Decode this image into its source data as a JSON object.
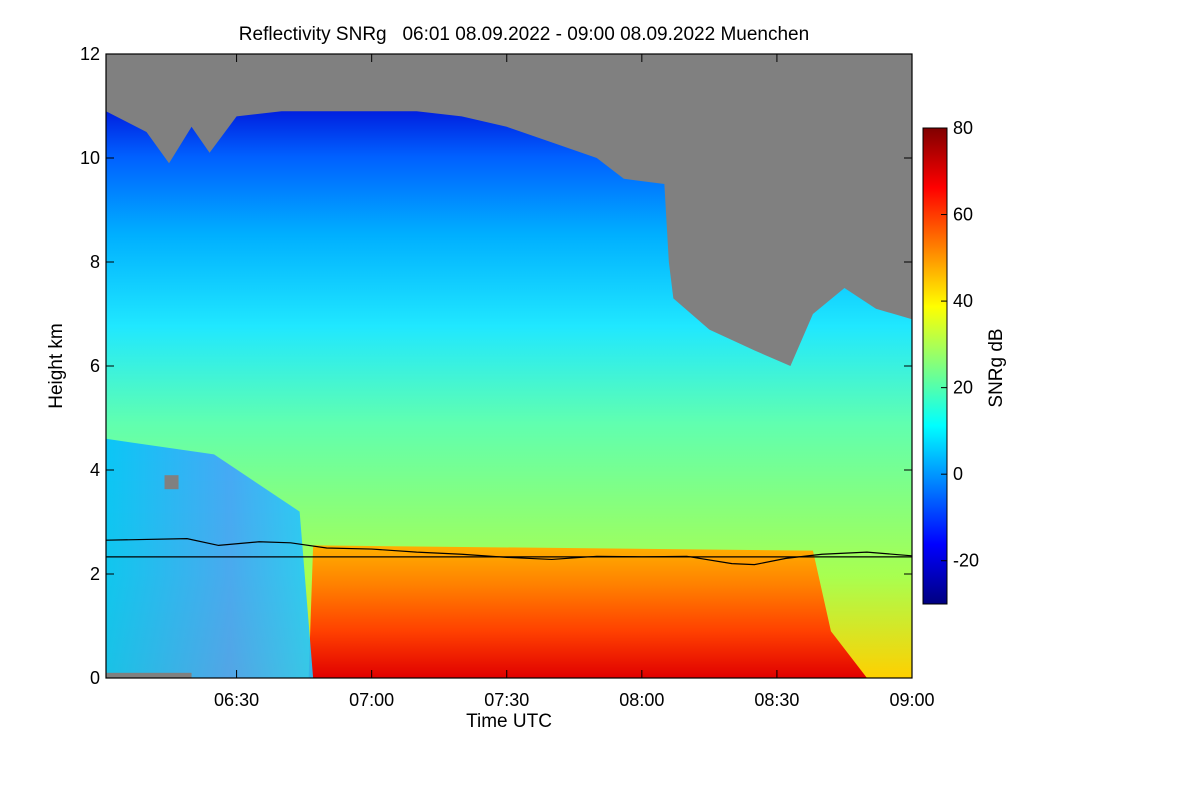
{
  "chart_data": {
    "type": "heatmap",
    "title": "Reflectivity SNRg   06:01 08.09.2022 - 09:00 08.09.2022 Muenchen",
    "xlabel": "Time UTC",
    "ylabel": "Height km",
    "colorbar_label": "SNRg dB",
    "xlim": [
      "06:01",
      "09:00"
    ],
    "ylim": [
      0,
      12
    ],
    "x_ticks": [
      "06:30",
      "07:00",
      "07:30",
      "08:00",
      "08:30",
      "09:00"
    ],
    "y_ticks": [
      0,
      2,
      4,
      6,
      8,
      10,
      12
    ],
    "colorbar_range": [
      -30,
      80
    ],
    "colorbar_ticks": [
      -20,
      0,
      20,
      40,
      60,
      80
    ],
    "colormap": "jet",
    "no_signal_color": "#808080",
    "cloud_top_km": [
      {
        "t": "06:01",
        "h": 10.9
      },
      {
        "t": "06:10",
        "h": 10.5
      },
      {
        "t": "06:15",
        "h": 9.9
      },
      {
        "t": "06:20",
        "h": 10.6
      },
      {
        "t": "06:24",
        "h": 10.1
      },
      {
        "t": "06:30",
        "h": 10.8
      },
      {
        "t": "06:40",
        "h": 10.9
      },
      {
        "t": "06:50",
        "h": 10.9
      },
      {
        "t": "07:00",
        "h": 10.9
      },
      {
        "t": "07:10",
        "h": 10.9
      },
      {
        "t": "07:20",
        "h": 10.8
      },
      {
        "t": "07:30",
        "h": 10.6
      },
      {
        "t": "07:40",
        "h": 10.3
      },
      {
        "t": "07:50",
        "h": 10.0
      },
      {
        "t": "07:56",
        "h": 9.6
      },
      {
        "t": "08:05",
        "h": 9.5
      },
      {
        "t": "08:06",
        "h": 8.0
      },
      {
        "t": "08:07",
        "h": 7.3
      },
      {
        "t": "08:15",
        "h": 6.7
      },
      {
        "t": "08:25",
        "h": 6.3
      },
      {
        "t": "08:33",
        "h": 6.0
      },
      {
        "t": "08:38",
        "h": 7.0
      },
      {
        "t": "08:45",
        "h": 7.5
      },
      {
        "t": "08:52",
        "h": 7.1
      },
      {
        "t": "09:00",
        "h": 6.9
      }
    ],
    "series": [
      {
        "values": [
          {
            "t": "06:01",
            "h": 2.65
          },
          {
            "t": "06:19",
            "h": 2.68
          },
          {
            "t": "06:26",
            "h": 2.55
          },
          {
            "t": "06:35",
            "h": 2.62
          },
          {
            "t": "06:42",
            "h": 2.6
          },
          {
            "t": "06:50",
            "h": 2.5
          },
          {
            "t": "07:00",
            "h": 2.48
          },
          {
            "t": "07:10",
            "h": 2.42
          },
          {
            "t": "07:20",
            "h": 2.38
          },
          {
            "t": "07:30",
            "h": 2.32
          },
          {
            "t": "07:40",
            "h": 2.28
          },
          {
            "t": "07:50",
            "h": 2.34
          },
          {
            "t": "08:00",
            "h": 2.33
          },
          {
            "t": "08:10",
            "h": 2.34
          },
          {
            "t": "08:20",
            "h": 2.2
          },
          {
            "t": "08:25",
            "h": 2.18
          },
          {
            "t": "08:32",
            "h": 2.3
          },
          {
            "t": "08:40",
            "h": 2.38
          },
          {
            "t": "08:50",
            "h": 2.42
          },
          {
            "t": "09:00",
            "h": 2.35
          }
        ]
      },
      {
        "values": [
          {
            "t": "06:01",
            "h": 2.33
          },
          {
            "t": "09:00",
            "h": 2.33
          }
        ]
      }
    ]
  }
}
